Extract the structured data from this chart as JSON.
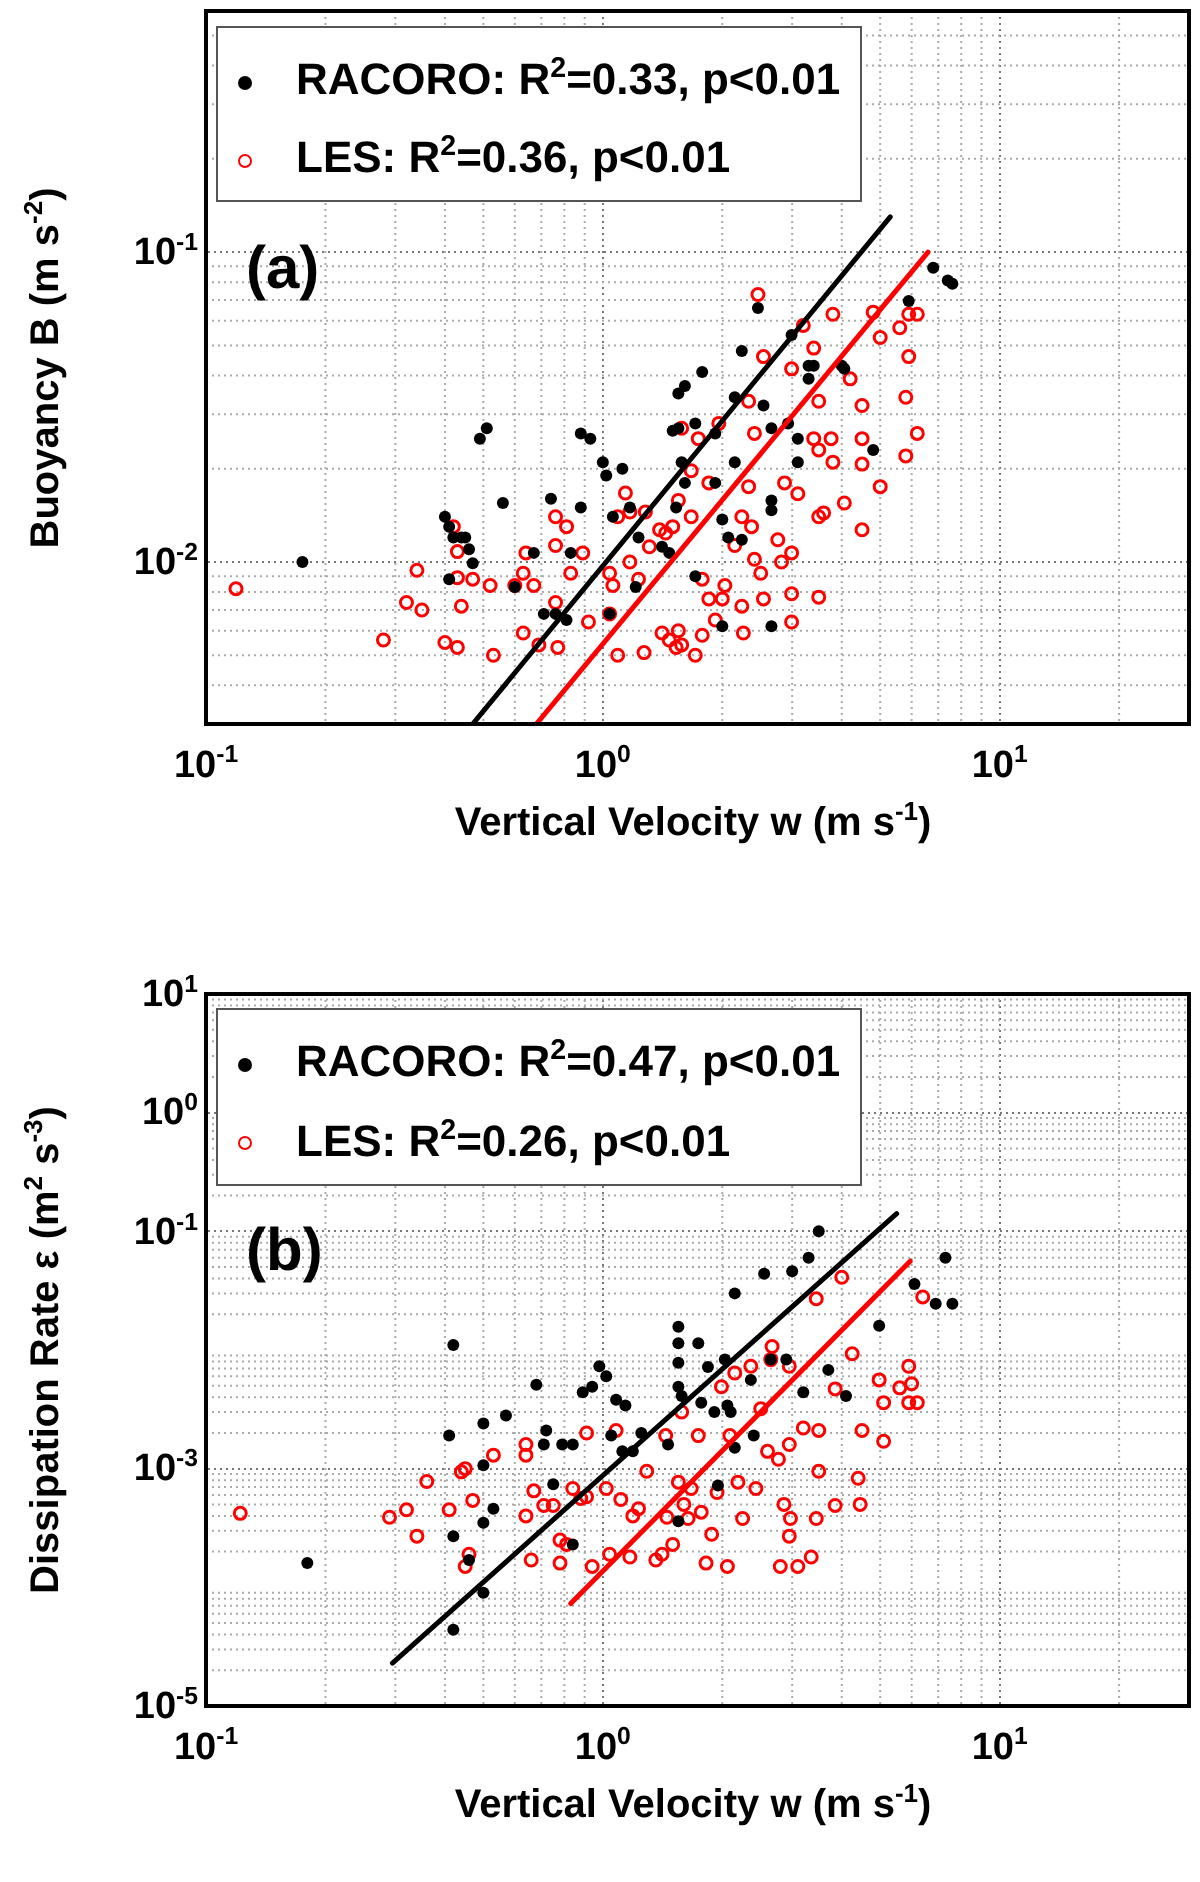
{
  "chart_data": [
    {
      "type": "scatter",
      "xlabel": "Vertical Velocity w (m s$^{-1}$)",
      "ylabel": "Buoyancy B (m s$^{-2}$)",
      "log": "xy",
      "grid": true,
      "legend": "top left",
      "line_style": "solid",
      "annotations": [
        "(a)"
      ],
      "xlim": [
        0.1,
        30
      ],
      "ylim": [
        0.003,
        0.6
      ],
      "xticks": [
        {
          "value": 0.1,
          "label": "10$^{-1}$"
        },
        {
          "value": 1,
          "label": "10$^{0}$"
        },
        {
          "value": 10,
          "label": "10$^{1}$"
        }
      ],
      "yticks": [
        {
          "value": 0.1,
          "label": "10$^{-1}$"
        },
        {
          "value": 0.01,
          "label": "10$^{-2}$"
        }
      ],
      "series": [
        {
          "name": "RACORO: R$^{2}$=0.33, p<0.01",
          "color": "#000000",
          "marker": "circle",
          "x": [
            0.175,
            0.49,
            0.51,
            0.4,
            0.41,
            0.42,
            0.44,
            0.45,
            0.46,
            0.47,
            0.41,
            0.56,
            0.74,
            0.88,
            0.88,
            0.93,
            1.0,
            1.02,
            1.12,
            0.67,
            0.71,
            0.76,
            0.81,
            0.6,
            0.83,
            1.06,
            1.17,
            1.23,
            1.04,
            1.21,
            1.41,
            1.47,
            1.53,
            1.71,
            1.5,
            1.55,
            1.55,
            1.61,
            1.78,
            1.71,
            1.58,
            1.61,
            1.92,
            1.92,
            2.15,
            2.24,
            2.15,
            2.46,
            2.0,
            2.07,
            2.24,
            2.0,
            2.54,
            2.66,
            2.93,
            2.66,
            2.66,
            2.66,
            3.1,
            3.1,
            2.99,
            3.3,
            3.4,
            3.3,
            4.0,
            4.06,
            4.8,
            5.9,
            6.8,
            7.4,
            7.6
          ],
          "values": [
            0.01,
            0.025,
            0.027,
            0.014,
            0.013,
            0.012,
            0.012,
            0.012,
            0.011,
            0.0099,
            0.0088,
            0.0155,
            0.016,
            0.015,
            0.026,
            0.025,
            0.021,
            0.019,
            0.02,
            0.0107,
            0.0068,
            0.0068,
            0.0065,
            0.0083,
            0.0107,
            0.014,
            0.015,
            0.012,
            0.0068,
            0.0083,
            0.0112,
            0.0107,
            0.015,
            0.009,
            0.0265,
            0.027,
            0.035,
            0.037,
            0.041,
            0.028,
            0.021,
            0.018,
            0.018,
            0.026,
            0.034,
            0.048,
            0.021,
            0.066,
            0.0137,
            0.012,
            0.0118,
            0.0062,
            0.032,
            0.027,
            0.028,
            0.0158,
            0.0147,
            0.0062,
            0.025,
            0.021,
            0.054,
            0.043,
            0.043,
            0.039,
            0.043,
            0.042,
            0.023,
            0.0695,
            0.089,
            0.081,
            0.079
          ]
        },
        {
          "name": "LES: R$^{2}$=0.36, p<0.01",
          "color": "#ff0000",
          "marker": "circle",
          "x": [
            0.119,
            0.28,
            0.32,
            0.35,
            0.34,
            0.4,
            0.43,
            0.53,
            0.42,
            0.43,
            0.44,
            0.43,
            0.47,
            0.52,
            0.6,
            0.63,
            0.64,
            0.67,
            0.63,
            0.69,
            0.76,
            0.81,
            0.76,
            0.76,
            0.77,
            0.83,
            0.89,
            0.92,
            1.04,
            1.09,
            1.17,
            1.28,
            1.14,
            1.06,
            1.04,
            1.09,
            1.27,
            1.17,
            1.23,
            1.31,
            1.39,
            1.44,
            1.5,
            1.41,
            1.47,
            1.53,
            1.58,
            1.71,
            1.55,
            1.58,
            1.74,
            1.67,
            1.55,
            1.67,
            1.85,
            1.96,
            1.78,
            1.85,
            1.92,
            2.0,
            2.03,
            1.78,
            2.15,
            2.24,
            2.37,
            2.41,
            2.24,
            2.26,
            2.5,
            2.54,
            2.33,
            2.41,
            2.54,
            2.46,
            2.33,
            2.76,
            2.82,
            2.99,
            2.99,
            2.99,
            3.5,
            2.87,
            3.1,
            2.99,
            3.2,
            3.4,
            3.5,
            3.4,
            3.5,
            3.76,
            3.8,
            3.5,
            3.6,
            4.06,
            3.8,
            4.2,
            4.5,
            4.5,
            4.5,
            4.5,
            5.0,
            4.8,
            5.0,
            5.6,
            5.9,
            5.8,
            6.2,
            5.8,
            5.9,
            6.2
          ],
          "values": [
            0.0082,
            0.0056,
            0.0074,
            0.007,
            0.0094,
            0.0055,
            0.0053,
            0.005,
            0.013,
            0.0108,
            0.0072,
            0.0089,
            0.0088,
            0.0084,
            0.0084,
            0.0092,
            0.0107,
            0.0084,
            0.0059,
            0.0054,
            0.014,
            0.013,
            0.0113,
            0.0074,
            0.0053,
            0.0092,
            0.0107,
            0.0064,
            0.0092,
            0.014,
            0.0145,
            0.0145,
            0.0167,
            0.0084,
            0.0068,
            0.005,
            0.0051,
            0.01,
            0.0088,
            0.0112,
            0.0127,
            0.0124,
            0.013,
            0.0059,
            0.0056,
            0.0053,
            0.0054,
            0.005,
            0.006,
            0.027,
            0.025,
            0.0197,
            0.0158,
            0.014,
            0.018,
            0.028,
            0.0088,
            0.0076,
            0.0065,
            0.0076,
            0.0084,
            0.0058,
            0.0113,
            0.014,
            0.013,
            0.0102,
            0.0072,
            0.0059,
            0.0092,
            0.0076,
            0.033,
            0.026,
            0.046,
            0.073,
            0.0175,
            0.0118,
            0.01,
            0.0107,
            0.0079,
            0.0064,
            0.0077,
            0.018,
            0.0166,
            0.042,
            0.058,
            0.049,
            0.033,
            0.025,
            0.023,
            0.025,
            0.021,
            0.014,
            0.0144,
            0.0155,
            0.063,
            0.039,
            0.032,
            0.025,
            0.0207,
            0.0127,
            0.0175,
            0.064,
            0.053,
            0.057,
            0.046,
            0.034,
            0.026,
            0.022,
            0.063,
            0.063
          ]
        },
        {
          "color": "#000000",
          "type": "line",
          "marker": "none",
          "x": [
            0.47,
            5.3
          ],
          "values": [
            0.003,
            0.13
          ]
        },
        {
          "color": "#ff0000",
          "type": "line",
          "marker": "none",
          "x": [
            0.68,
            6.6
          ],
          "values": [
            0.003,
            0.1
          ]
        }
      ]
    },
    {
      "type": "scatter",
      "xlabel": "Vertical Velocity w (m s$^{-1}$)",
      "ylabel": "Dissipation Rate ε (m$^{2}$ s$^{-3}$)",
      "log": "xy",
      "grid": true,
      "legend": "top left",
      "line_style": "solid",
      "annotations": [
        "(b)"
      ],
      "xlim": [
        0.1,
        30
      ],
      "ylim": [
        1e-05,
        10
      ],
      "xticks": [
        {
          "value": 0.1,
          "label": "10$^{-1}$"
        },
        {
          "value": 1,
          "label": "10$^{0}$"
        },
        {
          "value": 10,
          "label": "10$^{1}$"
        }
      ],
      "yticks": [
        {
          "value": 10,
          "label": "10$^{1}$"
        },
        {
          "value": 1,
          "label": "10$^{0}$"
        },
        {
          "value": 0.1,
          "label": "10$^{-1}$"
        },
        {
          "value": 0.001,
          "label": "10$^{-3}$"
        },
        {
          "value": 1e-05,
          "label": "10$^{-5}$"
        }
      ],
      "series": [
        {
          "name": "RACORO: R$^{2}$=0.47, p<0.01",
          "color": "#000000",
          "marker": "circle",
          "x": [
            0.18,
            0.42,
            0.41,
            0.42,
            0.42,
            0.5,
            0.5,
            0.5,
            0.5,
            0.46,
            0.53,
            0.57,
            0.68,
            0.72,
            0.71,
            0.75,
            0.79,
            0.84,
            0.84,
            0.89,
            0.94,
            0.98,
            1.02,
            1.05,
            1.08,
            1.14,
            1.12,
            1.19,
            1.25,
            1.46,
            1.55,
            1.55,
            1.55,
            1.55,
            1.58,
            1.55,
            1.74,
            1.77,
            1.84,
            1.91,
            2.03,
            2.06,
            2.1,
            1.95,
            2.15,
            2.15,
            2.55,
            2.36,
            2.4,
            2.65,
            2.9,
            3.0,
            3.3,
            3.5,
            3.2,
            3.7,
            4.1,
            4.97,
            6.1,
            6.9,
            7.3,
            7.6
          ],
          "values": [
            0.00016,
            0.011,
            0.0019,
            0.00027,
            4.4e-05,
            0.0024,
            0.00107,
            0.00035,
            9e-05,
            0.00017,
            0.00046,
            0.0028,
            0.0051,
            0.0021,
            0.0016,
            0.00074,
            0.0016,
            0.0016,
            0.00023,
            0.0044,
            0.0049,
            0.0073,
            0.006,
            0.0019,
            0.0038,
            0.0034,
            0.0014,
            0.0014,
            0.002,
            0.0016,
            0.0157,
            0.0114,
            0.0078,
            0.0049,
            0.0041,
            0.00036,
            0.0114,
            0.0036,
            0.0072,
            0.003,
            0.0083,
            0.0034,
            0.003,
            0.00072,
            0.03,
            0.0015,
            0.044,
            0.0056,
            0.0019,
            0.0083,
            0.0083,
            0.046,
            0.06,
            0.1,
            0.0044,
            0.0068,
            0.0041,
            0.016,
            0.036,
            0.0245,
            0.06,
            0.0245
          ]
        },
        {
          "name": "LES: R$^{2}$=0.26, p<0.01",
          "color": "#ff0000",
          "marker": "circle",
          "x": [
            0.122,
            0.29,
            0.32,
            0.34,
            0.36,
            0.41,
            0.44,
            0.45,
            0.46,
            0.45,
            0.47,
            0.53,
            0.64,
            0.64,
            0.64,
            0.66,
            0.67,
            0.71,
            0.75,
            0.78,
            0.78,
            0.81,
            0.84,
            0.88,
            0.91,
            0.91,
            0.94,
            1.02,
            1.04,
            1.08,
            1.11,
            1.17,
            1.19,
            1.23,
            1.29,
            1.36,
            1.41,
            1.44,
            1.45,
            1.5,
            1.55,
            1.58,
            1.6,
            1.64,
            1.67,
            1.74,
            1.77,
            1.82,
            1.88,
            1.94,
            1.99,
            2.09,
            2.06,
            2.15,
            2.19,
            2.25,
            2.36,
            2.43,
            2.5,
            2.6,
            2.65,
            2.67,
            2.77,
            2.86,
            2.95,
            2.97,
            2.95,
            2.95,
            2.8,
            3.1,
            3.2,
            3.35,
            3.45,
            3.45,
            3.5,
            3.5,
            3.85,
            3.85,
            4.0,
            4.25,
            4.5,
            4.4,
            4.45,
            4.97,
            5.1,
            5.1,
            5.6,
            5.9,
            6.0,
            6.2,
            5.9,
            6.4
          ],
          "values": [
            0.00042,
            0.00039,
            0.00045,
            0.00027,
            0.00078,
            0.00045,
            0.00094,
            0.001,
            0.00019,
            0.00015,
            0.00054,
            0.0013,
            0.0016,
            0.0013,
            0.0004,
            0.00017,
            0.00065,
            0.00049,
            0.00049,
            0.00025,
            0.00016,
            0.00023,
            0.00068,
            0.00056,
            0.00058,
            0.002,
            0.00015,
            0.00068,
            0.00019,
            0.0021,
            0.00055,
            0.00018,
            0.0004,
            0.00046,
            0.00095,
            0.00017,
            0.00019,
            0.0019,
            0.00039,
            0.00023,
            0.00077,
            0.003,
            0.0005,
            0.00038,
            0.00068,
            0.0019,
            0.00043,
            0.00016,
            0.00028,
            0.00063,
            0.0049,
            0.0019,
            0.00015,
            0.0064,
            0.00077,
            0.00038,
            0.0073,
            0.00068,
            0.0032,
            0.0014,
            0.0083,
            0.0107,
            0.0012,
            0.0005,
            0.0073,
            0.00038,
            0.00027,
            0.0016,
            0.00015,
            0.00015,
            0.0022,
            0.00018,
            0.027,
            0.00038,
            0.00095,
            0.0021,
            0.00049,
            0.0047,
            0.041,
            0.0093,
            0.0021,
            0.00083,
            0.0005,
            0.0056,
            0.0036,
            0.0017,
            0.0048,
            0.0073,
            0.0052,
            0.0036,
            0.0036,
            0.028
          ]
        },
        {
          "color": "#000000",
          "type": "line",
          "marker": "none",
          "x": [
            0.295,
            5.5
          ],
          "values": [
            2.3e-05,
            0.141
          ]
        },
        {
          "color": "#ff0000",
          "type": "line",
          "marker": "none",
          "x": [
            0.83,
            5.95
          ],
          "values": [
            7.3e-05,
            0.056
          ]
        }
      ]
    }
  ]
}
